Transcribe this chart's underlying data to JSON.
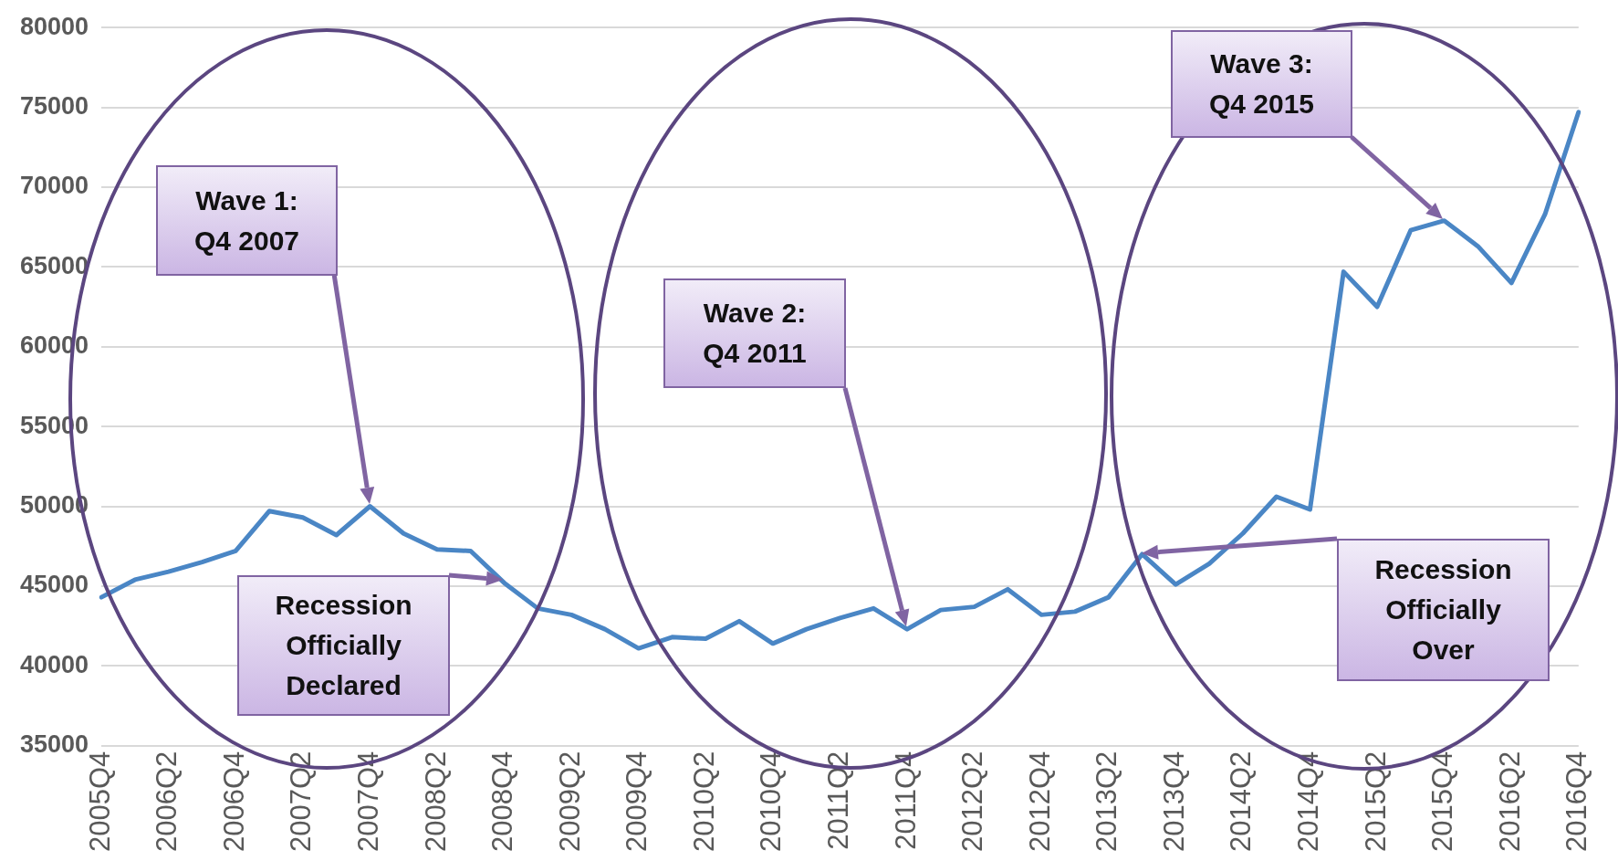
{
  "chart_data": {
    "type": "line",
    "categories": [
      "2005Q4",
      null,
      "2006Q2",
      null,
      "2006Q4",
      null,
      "2007Q2",
      null,
      "2007Q4",
      null,
      "2008Q2",
      null,
      "2008Q4",
      null,
      "2009Q2",
      null,
      "2009Q4",
      null,
      "2010Q2",
      null,
      "2010Q4",
      null,
      "2011Q2",
      null,
      "2011Q4",
      null,
      "2012Q2",
      null,
      "2012Q4",
      null,
      "2013Q2",
      null,
      "2013Q4",
      null,
      "2014Q2",
      null,
      "2014Q4",
      null,
      "2015Q2",
      null,
      "2015Q4",
      null,
      "2016Q2",
      null,
      "2016Q4"
    ],
    "series": [
      {
        "color": "#4a86c5",
        "values": [
          44300,
          45400,
          45900,
          46500,
          47200,
          49700,
          49300,
          48200,
          50000,
          48300,
          47300,
          47200,
          45200,
          43600,
          43200,
          42300,
          41100,
          41800,
          41700,
          42800,
          41400,
          42300,
          43000,
          43600,
          42300,
          43500,
          43700,
          44800,
          43200,
          43400,
          44300,
          47000,
          45100,
          46400,
          48300,
          50600,
          49800,
          64700,
          62500,
          67300,
          67900,
          66300,
          64000,
          68300,
          74700
        ]
      }
    ],
    "ylim": [
      35000,
      80000
    ],
    "yticks": [
      35000,
      40000,
      45000,
      50000,
      55000,
      60000,
      65000,
      70000,
      75000,
      80000
    ],
    "grid": "y",
    "marker": "none",
    "line_style": "solid",
    "annotations": [
      "Wave 1: Q4 2007",
      "Recession Officially Declared",
      "Wave 2: Q4 2011",
      "Wave 3: Q4 2015",
      "Recession Officially Over"
    ]
  }
}
